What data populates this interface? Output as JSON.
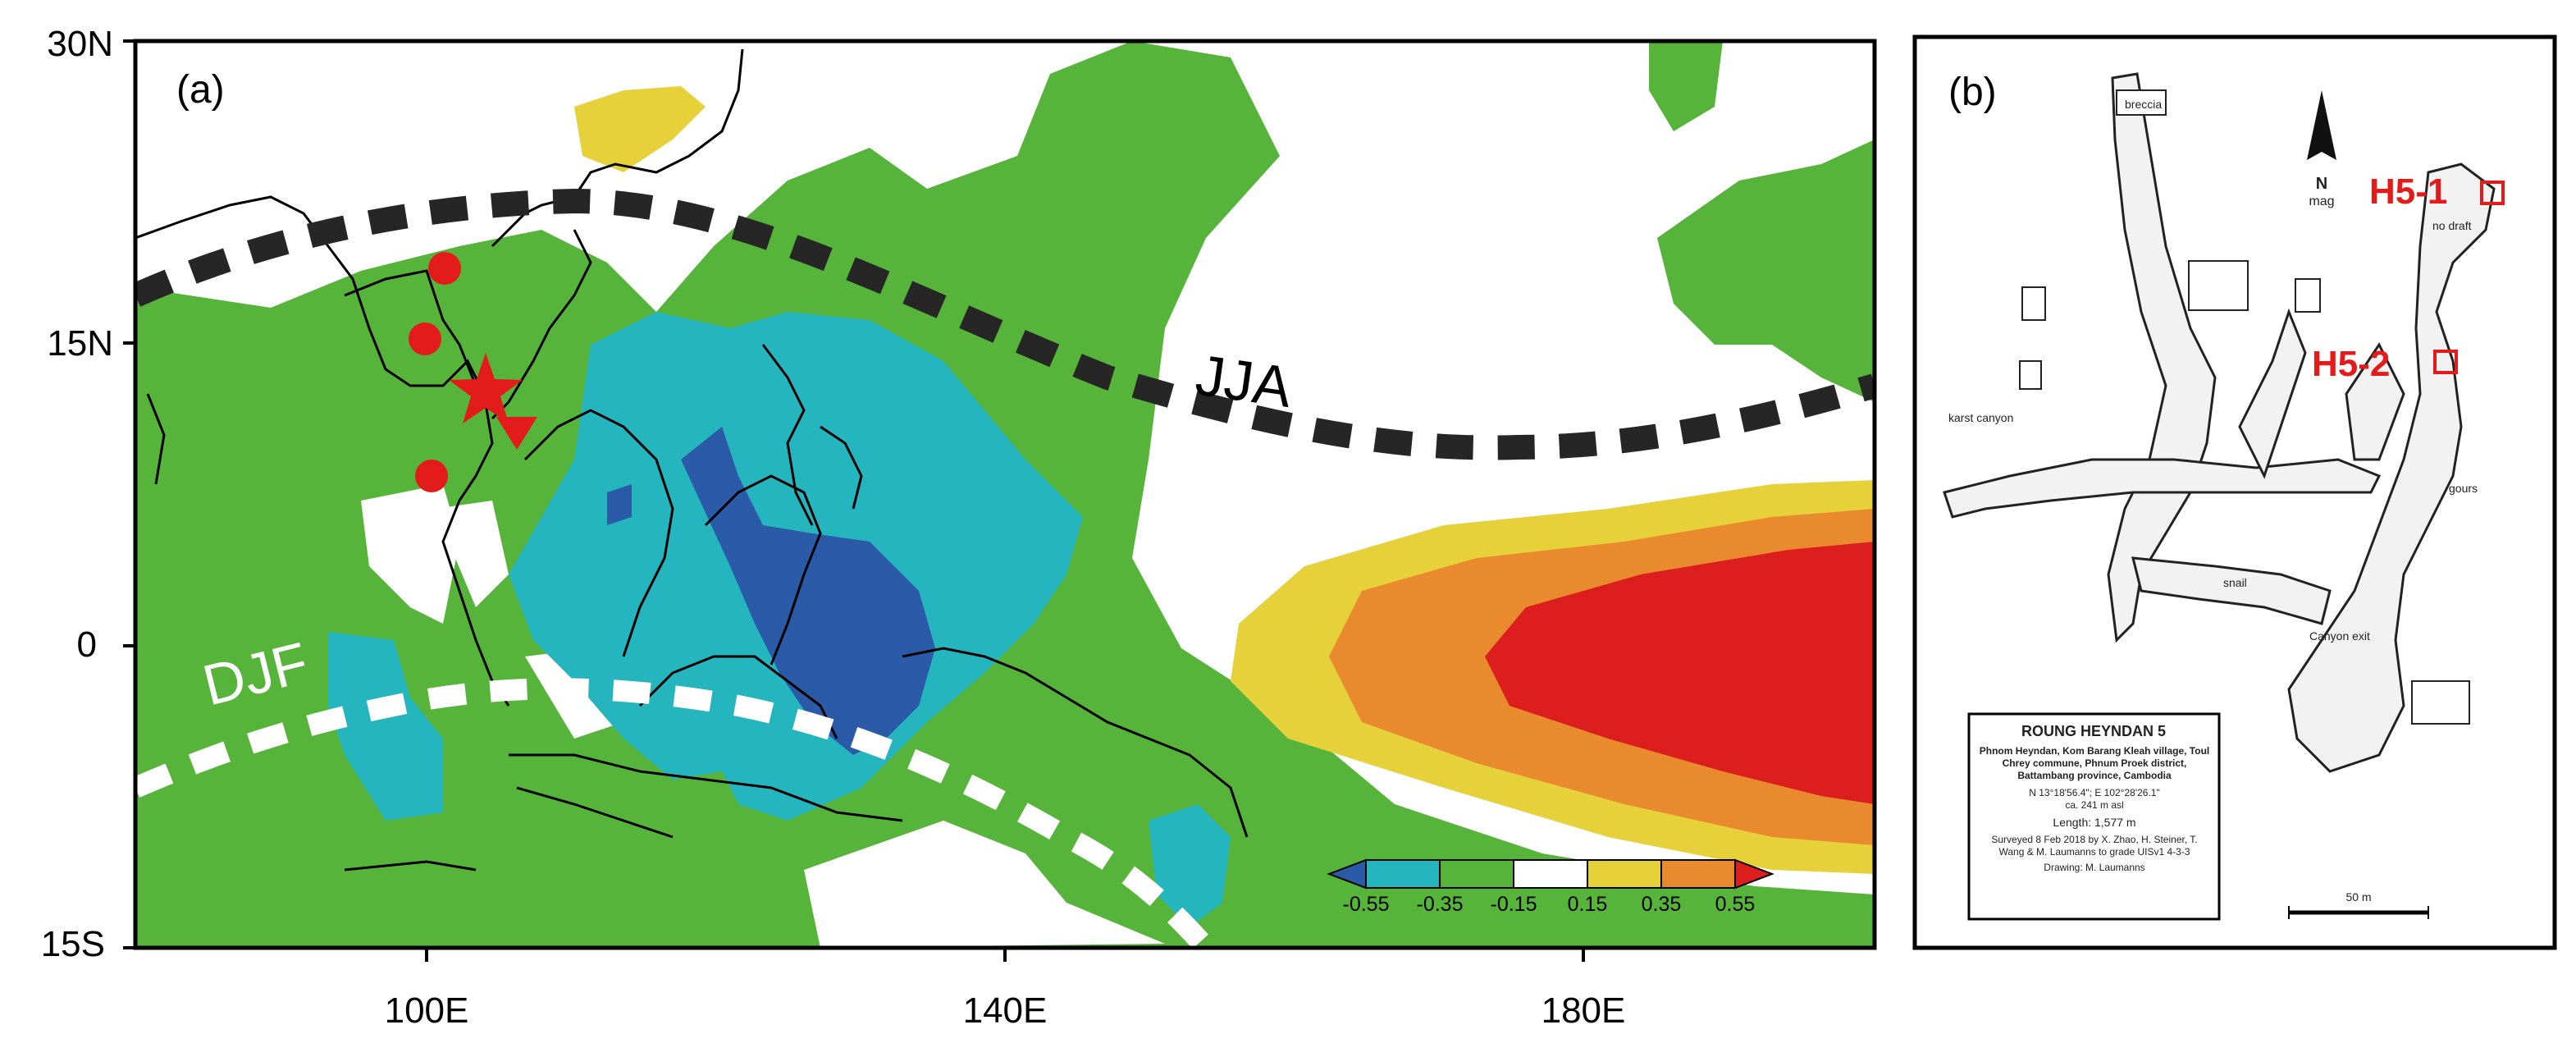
{
  "panel_a": {
    "label": "(a)",
    "lat_ticks": [
      "30N",
      "15N",
      "0",
      "15S"
    ],
    "lon_ticks": [
      "100E",
      "140E",
      "180E"
    ],
    "season_labels": {
      "summer": "JJA",
      "winter": "DJF"
    },
    "colorbar": {
      "ticks": [
        "-0.55",
        "-0.35",
        "-0.15",
        "0.15",
        "0.35",
        "0.55"
      ],
      "colors": [
        "#2a5aa8",
        "#25b5bf",
        "#57b43a",
        "#ffffff",
        "#e6d13a",
        "#ea8a2e",
        "#dc1e1e"
      ]
    },
    "colors": {
      "land_coast": "#000000",
      "jja_line": "#262626",
      "djf_line": "#ffffff",
      "site_marker": "#e41b1b"
    },
    "markers": [
      "circle",
      "circle",
      "circle",
      "star",
      "triangle-down"
    ]
  },
  "panel_b": {
    "label": "(b)",
    "north_arrow": {
      "letter": "N",
      "sub": "mag"
    },
    "site_labels": [
      "H5-1",
      "H5-2"
    ],
    "site_color": "#e41b1b",
    "map_labels": {
      "breccia": "breccia",
      "karst_canyon": "karst canyon",
      "canyon_exit": "Canyon exit",
      "gours": "gours",
      "no_draft": "no draft",
      "snail": "snail",
      "scale": "50 m"
    },
    "legend_box": {
      "title": "ROUNG HEYNDAN 5",
      "location": "Phnom Heyndan, Kom Barang Kleah village, Toul Chrey commune, Phnum Proek district, Battambang province, Cambodia",
      "coords": "N 13°18'56.4\"; E 102°28'26.1\"",
      "altitude": "ca. 241 m asl",
      "length": "Length: 1,577 m",
      "surveyed": "Surveyed 8 Feb 2018 by X. Zhao, H. Steiner, T. Wang & M. Laumanns to grade UISv1 4-3-3",
      "drawing": "Drawing: M. Laumanns"
    }
  }
}
